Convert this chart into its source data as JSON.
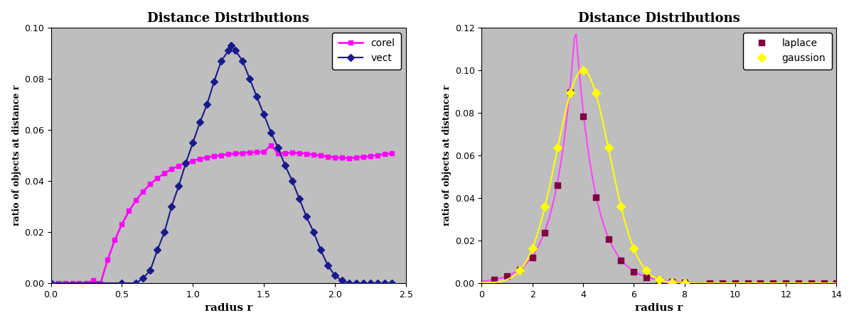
{
  "title": "Distance Distributions",
  "xlabel": "radius r",
  "ylabel": "ratio of objects at distance r",
  "background_color": "#bebebe",
  "fig_background": "#ffffff",
  "plot1": {
    "xlim": [
      0,
      2.5
    ],
    "ylim": [
      0,
      0.1
    ],
    "xticks": [
      0,
      0.5,
      1.0,
      1.5,
      2.0,
      2.5
    ],
    "yticks": [
      0,
      0.02,
      0.04,
      0.06,
      0.08,
      0.1
    ],
    "vect_color": "#1a1a8c",
    "corel_color": "#ff00ff",
    "vect_label": "vect",
    "corel_label": "corel"
  },
  "plot2": {
    "xlim": [
      0,
      14
    ],
    "ylim": [
      0,
      0.12
    ],
    "xticks": [
      0,
      2,
      4,
      6,
      8,
      10,
      12,
      14
    ],
    "yticks": [
      0,
      0.02,
      0.04,
      0.06,
      0.08,
      0.1,
      0.12
    ],
    "gaussion_color": "#ffff00",
    "gaussion_line_color": "#ffff00",
    "laplace_color": "#800040",
    "laplace_line_color": "#ff44ff",
    "gaussion_label": "gaussion",
    "laplace_label": "laplace"
  }
}
